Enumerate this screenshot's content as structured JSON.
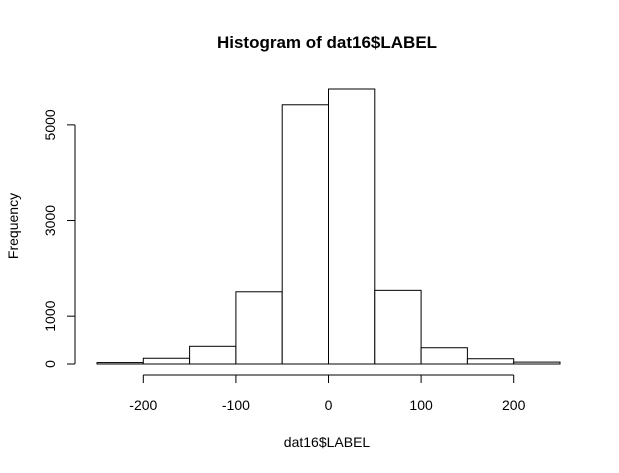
{
  "chart_data": {
    "type": "bar",
    "title": "Histogram of dat16$LABEL",
    "xlabel": "dat16$LABEL",
    "ylabel": "Frequency",
    "bins": [
      {
        "start": -250,
        "end": -200,
        "count": 30
      },
      {
        "start": -200,
        "end": -150,
        "count": 120
      },
      {
        "start": -150,
        "end": -100,
        "count": 370
      },
      {
        "start": -100,
        "end": -50,
        "count": 1510
      },
      {
        "start": -50,
        "end": 0,
        "count": 5420
      },
      {
        "start": 0,
        "end": 50,
        "count": 5750
      },
      {
        "start": 50,
        "end": 100,
        "count": 1540
      },
      {
        "start": 100,
        "end": 150,
        "count": 340
      },
      {
        "start": 150,
        "end": 200,
        "count": 110
      },
      {
        "start": 200,
        "end": 250,
        "count": 40
      }
    ],
    "xticks": [
      -200,
      -100,
      0,
      100,
      200
    ],
    "xtick_labels": [
      "-200",
      "-100",
      "0",
      "100",
      "200"
    ],
    "yticks": [
      0,
      1000,
      3000,
      5000
    ],
    "ytick_labels": [
      "0",
      "1000",
      "3000",
      "5000"
    ],
    "xlim": [
      -250,
      250
    ],
    "ylim": [
      0,
      5750
    ],
    "grid": false,
    "legend": "none"
  }
}
